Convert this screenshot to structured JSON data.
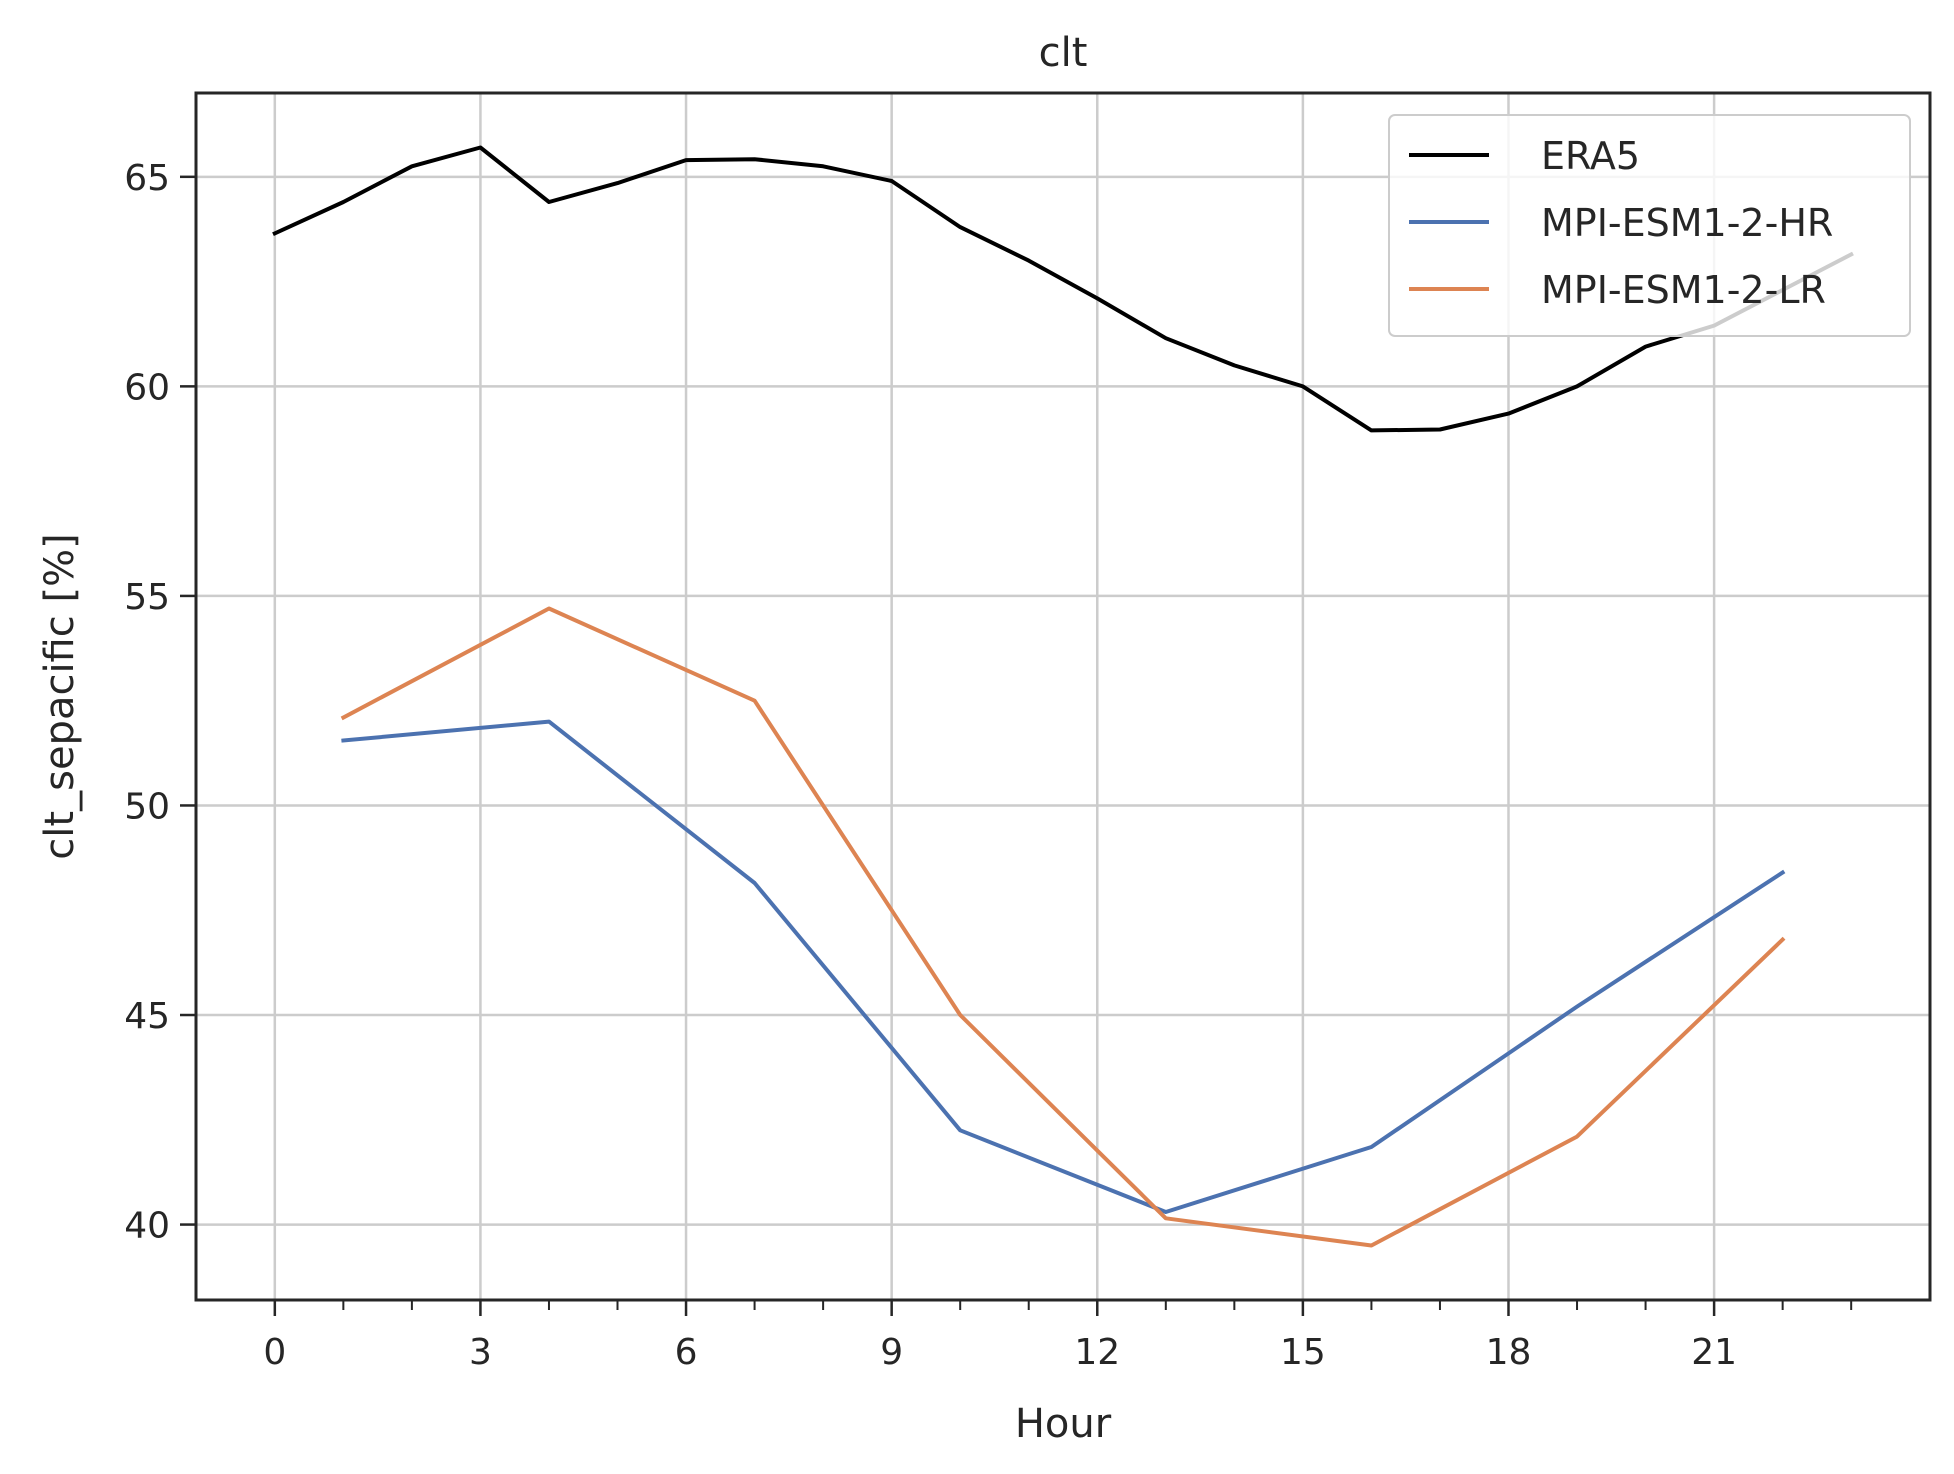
{
  "chart_data": {
    "type": "line",
    "title": "clt",
    "xlabel": "Hour",
    "ylabel": "clt_sepacific [%]",
    "xlim": [
      -1.15,
      24.15
    ],
    "ylim": [
      38.2,
      67.0
    ],
    "xticks": [
      0,
      3,
      6,
      9,
      12,
      15,
      18,
      21
    ],
    "xticks_minor": [
      1,
      2,
      4,
      5,
      7,
      8,
      10,
      11,
      13,
      14,
      16,
      17,
      19,
      20,
      22,
      23
    ],
    "yticks": [
      40,
      45,
      50,
      55,
      60,
      65
    ],
    "grid": true,
    "legend_position": "top-right",
    "series": [
      {
        "name": "ERA5",
        "color": "#000000",
        "x": [
          0,
          1,
          2,
          3,
          4,
          5,
          6,
          7,
          8,
          9,
          10,
          11,
          12,
          13,
          14,
          15,
          16,
          17,
          18,
          19,
          20,
          21,
          22,
          23
        ],
        "values": [
          63.65,
          64.4,
          65.25,
          65.7,
          64.4,
          64.85,
          65.4,
          65.42,
          65.25,
          64.9,
          63.8,
          63.0,
          62.1,
          61.15,
          60.5,
          60.0,
          58.95,
          58.97,
          59.35,
          60.0,
          60.95,
          61.45,
          62.3,
          63.15
        ]
      },
      {
        "name": "MPI-ESM1-2-HR",
        "color": "#4c72b0",
        "x": [
          1,
          4,
          7,
          10,
          13,
          16,
          19,
          22
        ],
        "values": [
          51.55,
          52.0,
          48.15,
          42.25,
          40.3,
          41.85,
          45.2,
          48.4
        ]
      },
      {
        "name": "MPI-ESM1-2-LR",
        "color": "#dd8452",
        "x": [
          1,
          4,
          7,
          10,
          13,
          16,
          19,
          22
        ],
        "values": [
          52.1,
          54.7,
          52.5,
          45.0,
          40.15,
          39.5,
          42.1,
          46.8
        ]
      }
    ]
  }
}
